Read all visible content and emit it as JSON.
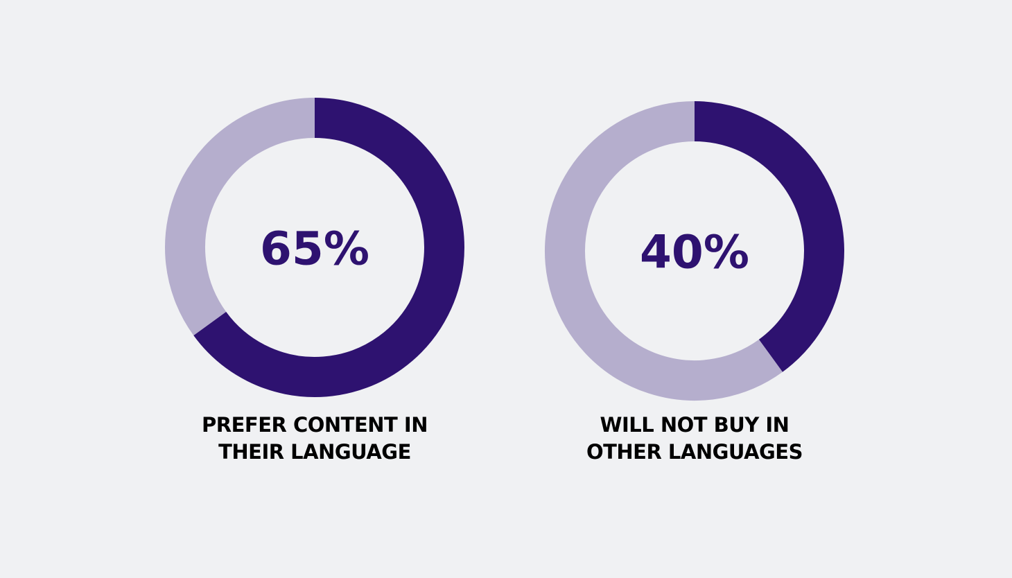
{
  "chart_data": [
    {
      "type": "donut",
      "values": [
        65,
        35
      ],
      "value_labels": [
        "65%",
        null
      ],
      "colors": [
        "#2e1270",
        "#b5aecd"
      ],
      "title": "PREFER CONTENT IN THEIR LANGUAGE"
    },
    {
      "type": "donut",
      "values": [
        40,
        60
      ],
      "value_labels": [
        "40%",
        null
      ],
      "colors": [
        "#2e1270",
        "#b5aecd"
      ],
      "title": "WILL NOT BUY IN OTHER LANGUAGES"
    }
  ]
}
